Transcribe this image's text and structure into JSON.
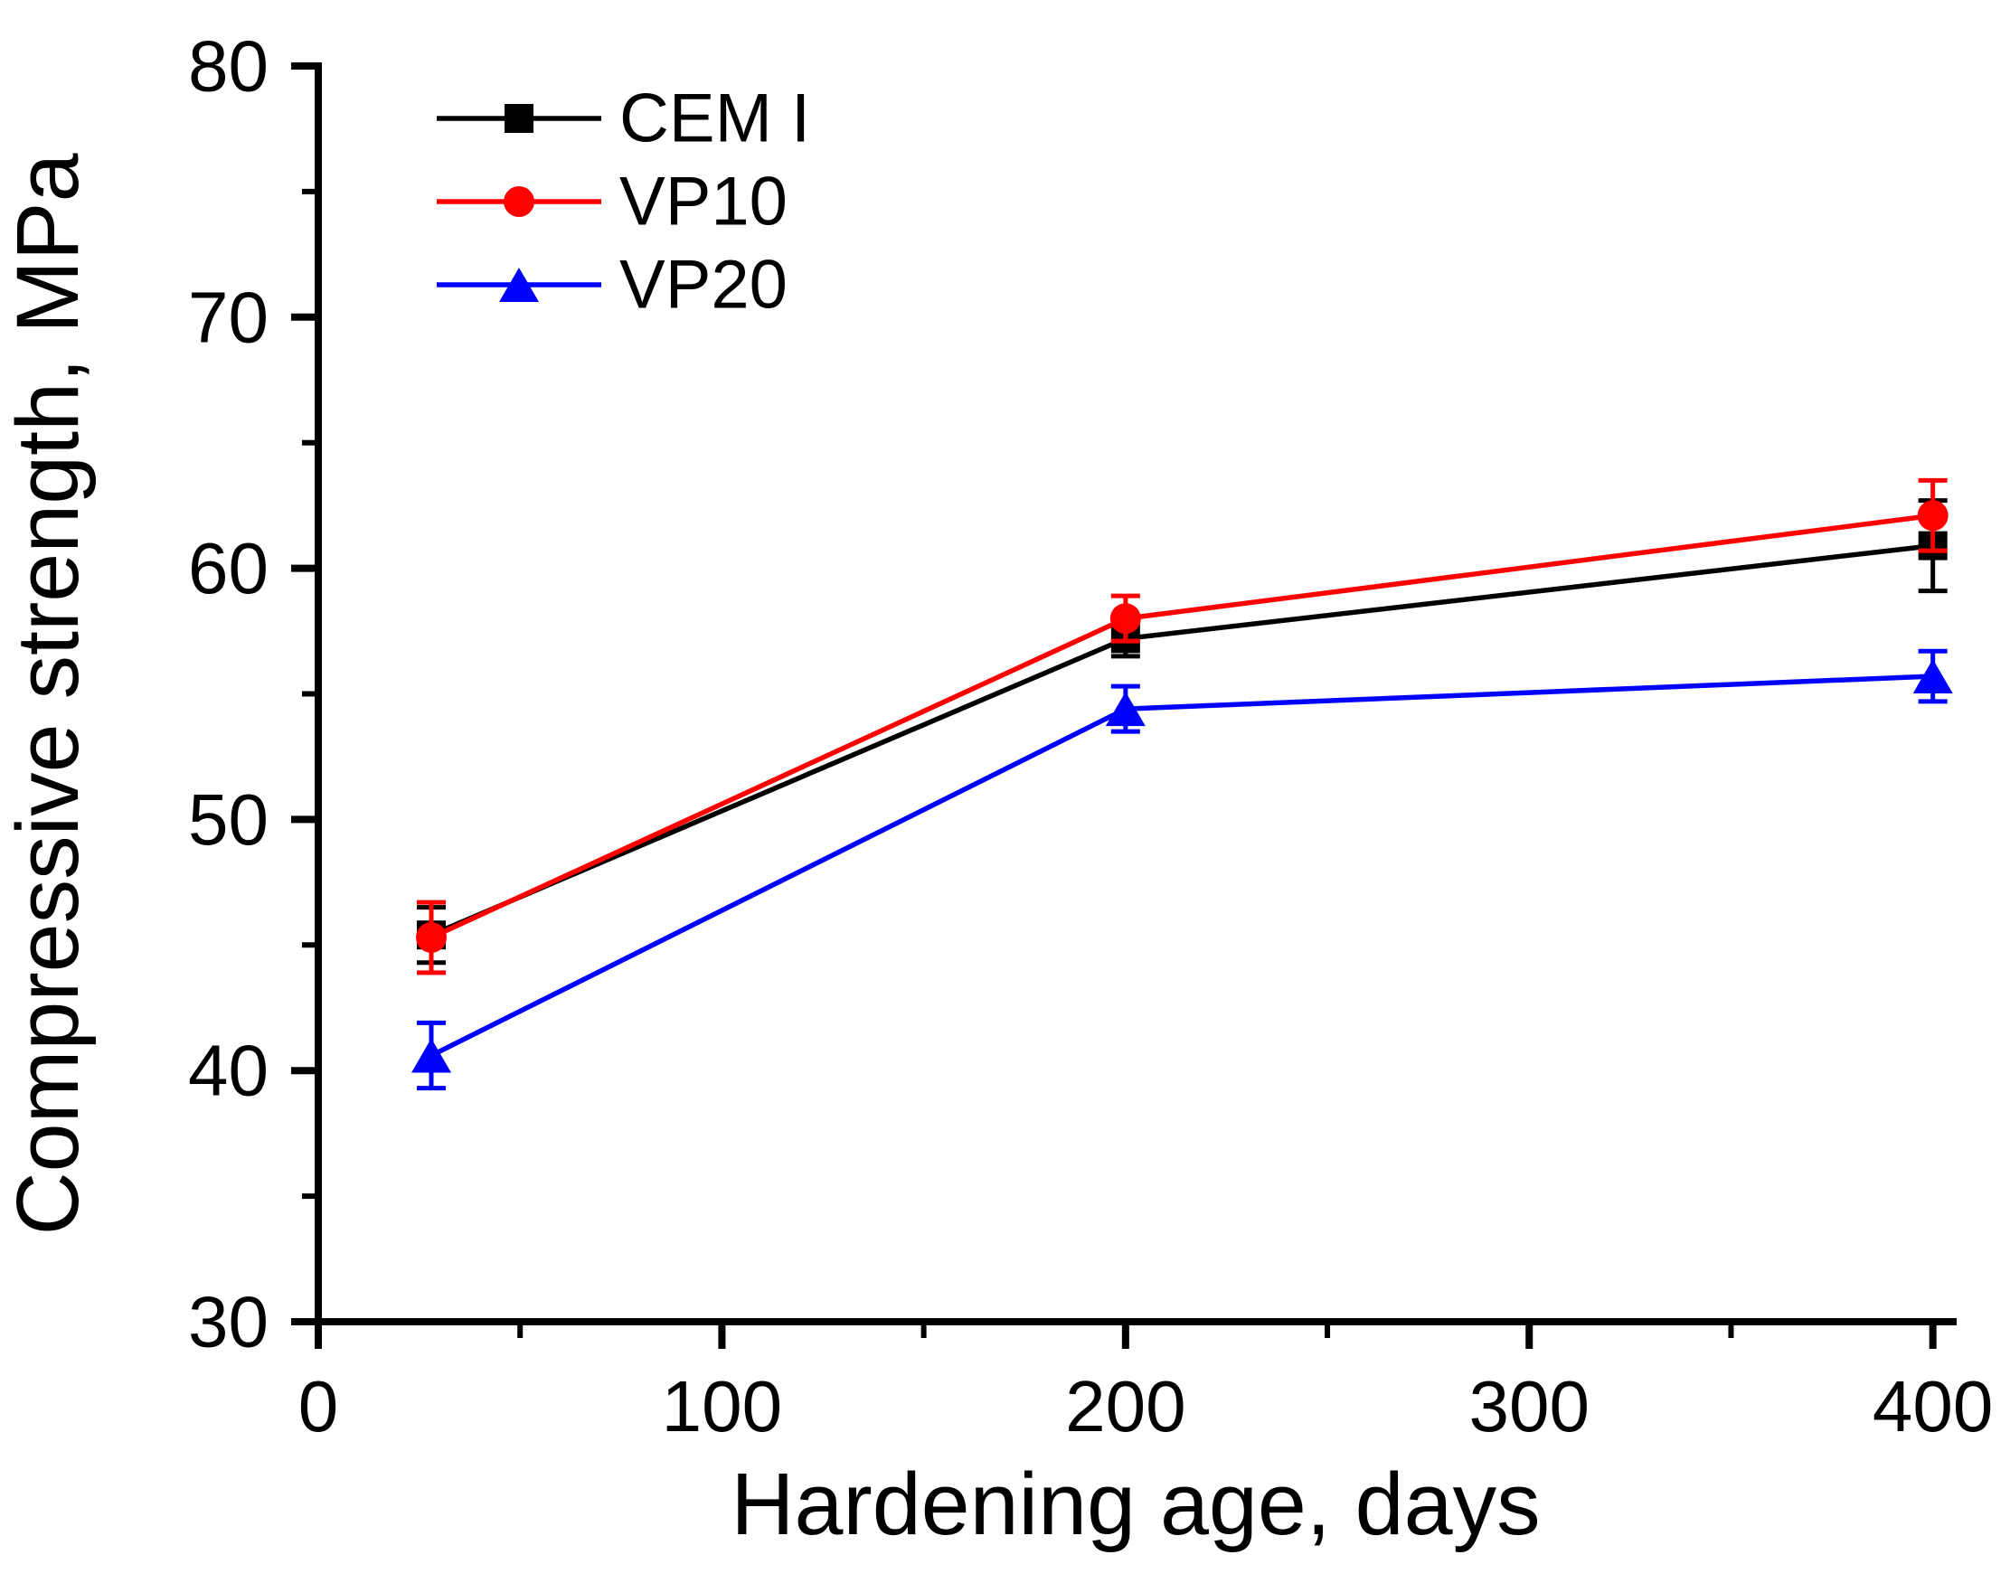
{
  "figure": {
    "background": "#ffffff",
    "axis_color": "#000000"
  },
  "chart_data": {
    "type": "line",
    "title": "",
    "xlabel": "Hardening age, days",
    "ylabel": "Compressive strength, MPa",
    "xlim": [
      0,
      405
    ],
    "ylim": [
      30,
      80
    ],
    "x_major_ticks": [
      0,
      100,
      200,
      300,
      400
    ],
    "x_minor_ticks": [
      50,
      150,
      250,
      350
    ],
    "y_major_ticks": [
      30,
      40,
      50,
      60,
      70,
      80
    ],
    "y_minor_ticks": [
      35,
      45,
      55,
      65,
      75
    ],
    "grid": false,
    "legend_position": "top-left-inside",
    "x": [
      28,
      200,
      400
    ],
    "series": [
      {
        "name": "CEM I",
        "color": "#000000",
        "marker": "square",
        "values": [
          45.4,
          57.2,
          60.9
        ],
        "errors": [
          1.1,
          0.7,
          1.8
        ]
      },
      {
        "name": "VP10",
        "color": "#ff0000",
        "marker": "circle",
        "values": [
          45.3,
          58.0,
          62.1
        ],
        "errors": [
          1.4,
          0.9,
          1.4
        ]
      },
      {
        "name": "VP20",
        "color": "#0000ff",
        "marker": "triangle",
        "values": [
          40.6,
          54.4,
          55.7
        ],
        "errors": [
          1.3,
          0.9,
          1.0
        ]
      }
    ]
  }
}
